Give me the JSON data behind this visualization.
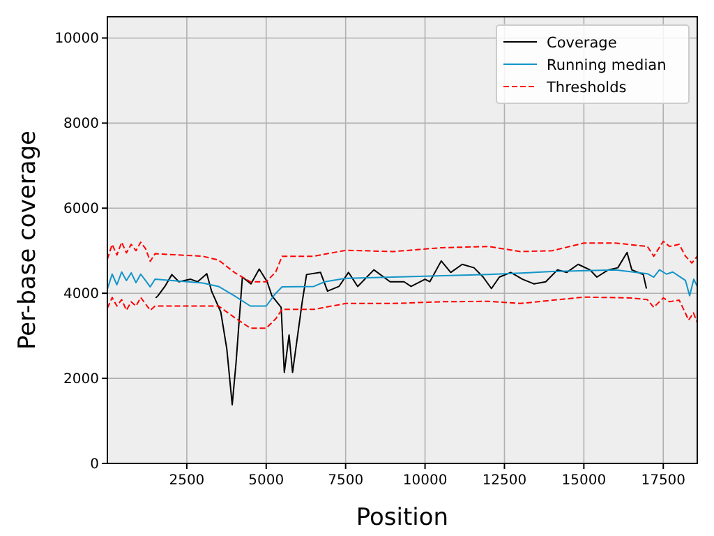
{
  "chart_data": {
    "type": "line",
    "xlabel": "Position",
    "ylabel": "Per-base coverage",
    "xlim": [
      0,
      18570
    ],
    "ylim": [
      0,
      10500
    ],
    "xticks": [
      2500,
      5000,
      7500,
      10000,
      12500,
      15000,
      17500
    ],
    "yticks": [
      0,
      2000,
      4000,
      6000,
      8000,
      10000
    ],
    "grid": true,
    "legend": "top right",
    "series": [
      {
        "name": "Coverage",
        "color": "#000000",
        "line_style": "solid",
        "x": [
          1520,
          1590,
          1810,
          2030,
          2250,
          2620,
          2840,
          3130,
          3280,
          3570,
          3760,
          3930,
          4050,
          4250,
          4520,
          4780,
          5030,
          5180,
          5470,
          5570,
          5720,
          5830,
          6130,
          6270,
          6710,
          6930,
          7290,
          7590,
          7880,
          8390,
          8900,
          9340,
          9560,
          10000,
          10150,
          10510,
          10810,
          11170,
          11540,
          11830,
          12090,
          12340,
          12700,
          13070,
          13430,
          13800,
          14170,
          14460,
          14820,
          15190,
          15410,
          15770,
          16070,
          16360,
          16510,
          16870,
          16970
        ],
        "values": [
          3890,
          3940,
          4160,
          4440,
          4270,
          4330,
          4270,
          4460,
          4050,
          3560,
          2690,
          1380,
          2360,
          4380,
          4220,
          4570,
          4270,
          3940,
          3670,
          2140,
          3020,
          2140,
          3780,
          4440,
          4490,
          4050,
          4160,
          4490,
          4160,
          4550,
          4270,
          4270,
          4160,
          4330,
          4270,
          4760,
          4490,
          4680,
          4600,
          4380,
          4110,
          4380,
          4490,
          4330,
          4220,
          4270,
          4550,
          4490,
          4680,
          4550,
          4380,
          4550,
          4600,
          4960,
          4550,
          4440,
          4110
        ]
      },
      {
        "name": "Running median",
        "color": "#1295c8",
        "line_style": "solid",
        "x": [
          0,
          150,
          300,
          450,
          600,
          750,
          900,
          1050,
          1200,
          1350,
          1500,
          3000,
          3500,
          4000,
          4500,
          5000,
          5300,
          5500,
          6500,
          6840,
          7500,
          9000,
          12000,
          14000,
          16000,
          17000,
          17200,
          17380,
          17600,
          17800,
          18000,
          18200,
          18330,
          18460,
          18570
        ],
        "values": [
          4100,
          4450,
          4200,
          4500,
          4300,
          4480,
          4250,
          4450,
          4300,
          4150,
          4330,
          4240,
          4160,
          3940,
          3700,
          3700,
          4000,
          4150,
          4160,
          4270,
          4350,
          4380,
          4440,
          4510,
          4550,
          4460,
          4380,
          4550,
          4450,
          4500,
          4400,
          4300,
          3940,
          4330,
          4160
        ]
      },
      {
        "name": "Thresholds",
        "color": "#ff0000",
        "line_style": "dashed",
        "x": [
          0,
          150,
          300,
          450,
          600,
          750,
          900,
          1050,
          1200,
          1350,
          1500,
          3000,
          3500,
          4000,
          4500,
          5000,
          5300,
          5500,
          6500,
          7500,
          9000,
          10500,
          12000,
          13000,
          14000,
          15000,
          16000,
          17000,
          17200,
          17500,
          17700,
          18000,
          18200,
          18400,
          18570
        ],
        "values": [
          4800,
          5150,
          4900,
          5200,
          4950,
          5150,
          5000,
          5200,
          5050,
          4750,
          4930,
          4870,
          4780,
          4490,
          4270,
          4270,
          4500,
          4870,
          4870,
          5010,
          4980,
          5070,
          5100,
          4980,
          5000,
          5180,
          5180,
          5100,
          4870,
          5220,
          5100,
          5150,
          4870,
          4710,
          4870
        ]
      },
      {
        "color": "#ff0000",
        "line_style": "dashed",
        "x": [
          0,
          150,
          300,
          450,
          600,
          750,
          900,
          1050,
          1200,
          1350,
          1500,
          3000,
          3500,
          4000,
          4500,
          5000,
          5300,
          5500,
          6500,
          7500,
          9000,
          10500,
          12000,
          13000,
          15000,
          16500,
          17000,
          17200,
          17500,
          17700,
          18000,
          18300,
          18450,
          18570
        ],
        "values": [
          3650,
          3900,
          3700,
          3850,
          3600,
          3800,
          3700,
          3900,
          3750,
          3600,
          3700,
          3700,
          3700,
          3430,
          3180,
          3180,
          3400,
          3620,
          3620,
          3760,
          3760,
          3800,
          3810,
          3760,
          3910,
          3890,
          3850,
          3670,
          3890,
          3800,
          3840,
          3370,
          3540,
          3310
        ]
      }
    ]
  }
}
